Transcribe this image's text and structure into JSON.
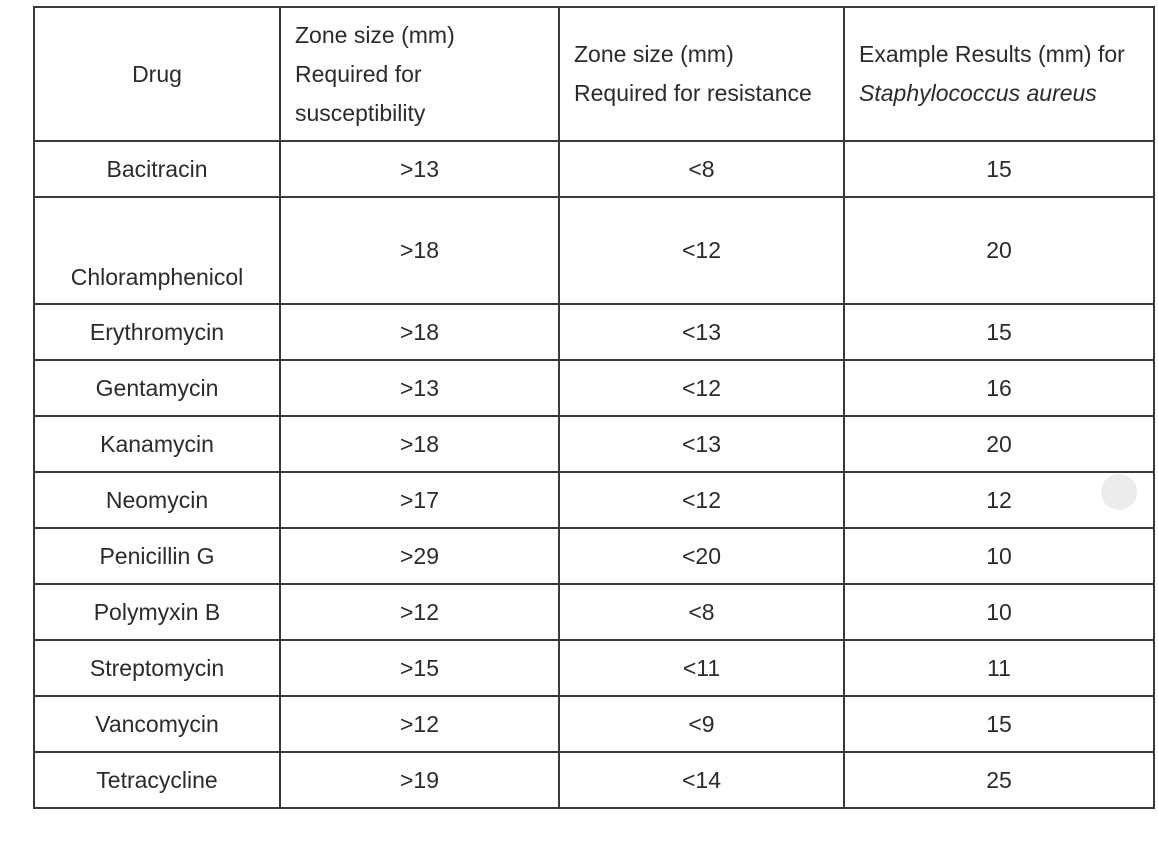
{
  "table": {
    "headers": [
      {
        "text": "Drug"
      },
      {
        "text": "Zone size (mm) Required for susceptibility"
      },
      {
        "text": "Zone size (mm) Required for resistance"
      },
      {
        "text": "Example Results (mm) for",
        "italic": "Staphylococcus aureus"
      }
    ],
    "rows": [
      [
        "Bacitracin",
        ">13",
        "<8",
        "15"
      ],
      [
        "Chloramphenicol",
        ">18",
        "<12",
        "20"
      ],
      [
        "Erythromycin",
        ">18",
        "<13",
        "15"
      ],
      [
        "Gentamycin",
        ">13",
        "<12",
        "16"
      ],
      [
        "Kanamycin",
        ">18",
        "<13",
        "20"
      ],
      [
        "Neomycin",
        ">17",
        "<12",
        "12"
      ],
      [
        "Penicillin G",
        ">29",
        "<20",
        "10"
      ],
      [
        "Polymyxin B",
        ">12",
        "<8",
        "10"
      ],
      [
        "Streptomycin",
        ">15",
        "<11",
        "11"
      ],
      [
        "Vancomycin",
        ">12",
        "<9",
        "15"
      ],
      [
        "Tetracycline",
        ">19",
        "<14",
        "25"
      ]
    ]
  }
}
